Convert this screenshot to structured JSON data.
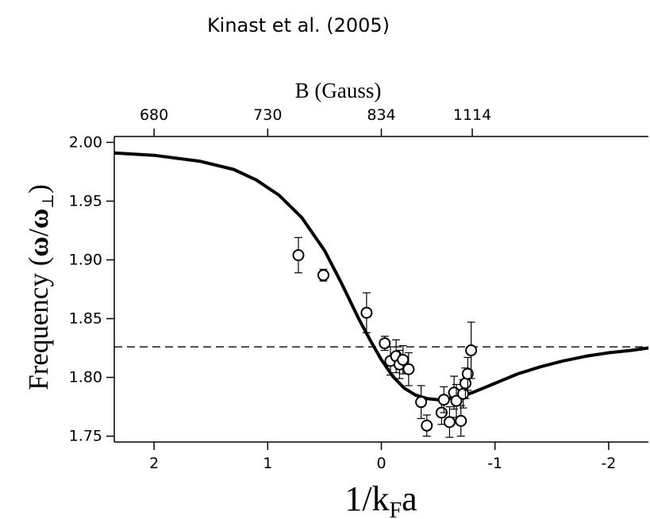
{
  "chart_data": {
    "type": "scatter",
    "title": "Kinast et al. (2005)",
    "xlabel": "1/k_Fa",
    "xlabel_main": "1/k",
    "xlabel_sub": "F",
    "xlabel_tail": "a",
    "ylabel": "Frequency (ω/ω⊥)",
    "ylabel_main": "Frequency (",
    "ylabel_omega": "ω",
    "ylabel_slash": "/",
    "ylabel_sub": "⊥",
    "ylabel_close": ")",
    "top_axis_label": "B (Gauss)",
    "x_reversed": true,
    "xlim": [
      2.35,
      -2.35
    ],
    "ylim": [
      1.745,
      2.005
    ],
    "x_ticks": [
      {
        "value": 2,
        "label": "2"
      },
      {
        "value": 1,
        "label": "1"
      },
      {
        "value": 0,
        "label": "0"
      },
      {
        "value": -1,
        "label": "-1"
      },
      {
        "value": -2,
        "label": "-2"
      }
    ],
    "y_ticks": [
      {
        "value": 2.0,
        "label": "2.00"
      },
      {
        "value": 1.95,
        "label": "1.95"
      },
      {
        "value": 1.9,
        "label": "1.90"
      },
      {
        "value": 1.85,
        "label": "1.85"
      },
      {
        "value": 1.8,
        "label": "1.80"
      },
      {
        "value": 1.75,
        "label": "1.75"
      }
    ],
    "top_ticks": [
      {
        "x": 2.0,
        "label": "680"
      },
      {
        "x": 1.0,
        "label": "730"
      },
      {
        "x": 0.0,
        "label": "834"
      },
      {
        "x": -0.8,
        "label": "1114"
      }
    ],
    "reference_line": {
      "y": 1.826,
      "style": "dashed"
    },
    "theory_curve": [
      [
        2.35,
        1.991
      ],
      [
        2.0,
        1.989
      ],
      [
        1.6,
        1.984
      ],
      [
        1.3,
        1.977
      ],
      [
        1.1,
        1.968
      ],
      [
        0.9,
        1.955
      ],
      [
        0.7,
        1.936
      ],
      [
        0.5,
        1.908
      ],
      [
        0.35,
        1.88
      ],
      [
        0.2,
        1.85
      ],
      [
        0.1,
        1.832
      ],
      [
        0.0,
        1.815
      ],
      [
        -0.1,
        1.801
      ],
      [
        -0.2,
        1.791
      ],
      [
        -0.3,
        1.785
      ],
      [
        -0.4,
        1.782
      ],
      [
        -0.5,
        1.781
      ],
      [
        -0.6,
        1.782
      ],
      [
        -0.7,
        1.784
      ],
      [
        -0.8,
        1.787
      ],
      [
        -1.0,
        1.795
      ],
      [
        -1.2,
        1.803
      ],
      [
        -1.4,
        1.809
      ],
      [
        -1.6,
        1.814
      ],
      [
        -1.8,
        1.818
      ],
      [
        -2.0,
        1.821
      ],
      [
        -2.2,
        1.823
      ],
      [
        -2.35,
        1.825
      ]
    ],
    "series": [
      {
        "points": [
          {
            "x": 0.73,
            "y": 1.904,
            "err": 0.015
          },
          {
            "x": 0.51,
            "y": 1.887,
            "err": 0.005
          },
          {
            "x": 0.13,
            "y": 1.855,
            "err": 0.017
          },
          {
            "x": -0.03,
            "y": 1.829,
            "err": 0.006
          },
          {
            "x": -0.08,
            "y": 1.814,
            "err": 0.012
          },
          {
            "x": -0.13,
            "y": 1.818,
            "err": 0.014
          },
          {
            "x": -0.16,
            "y": 1.811,
            "err": 0.012
          },
          {
            "x": -0.19,
            "y": 1.815,
            "err": 0.012
          },
          {
            "x": -0.24,
            "y": 1.807,
            "err": 0.014
          },
          {
            "x": -0.35,
            "y": 1.779,
            "err": 0.014
          },
          {
            "x": -0.4,
            "y": 1.759,
            "err": 0.009
          },
          {
            "x": -0.53,
            "y": 1.77,
            "err": 0.01
          },
          {
            "x": -0.55,
            "y": 1.781,
            "err": 0.011
          },
          {
            "x": -0.6,
            "y": 1.762,
            "err": 0.013
          },
          {
            "x": -0.64,
            "y": 1.787,
            "err": 0.014
          },
          {
            "x": -0.66,
            "y": 1.78,
            "err": 0.014
          },
          {
            "x": -0.7,
            "y": 1.763,
            "err": 0.013
          },
          {
            "x": -0.72,
            "y": 1.786,
            "err": 0.012
          },
          {
            "x": -0.74,
            "y": 1.795,
            "err": 0.013
          },
          {
            "x": -0.76,
            "y": 1.803,
            "err": 0.014
          },
          {
            "x": -0.79,
            "y": 1.823,
            "err": 0.024
          }
        ]
      }
    ],
    "colors": {
      "line": "#000000",
      "marker_fill": "#ffffff",
      "background": "#ffffff"
    }
  }
}
